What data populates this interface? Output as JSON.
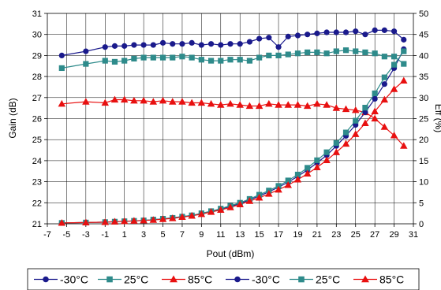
{
  "chart_data": {
    "type": "line",
    "title": "",
    "xlabel": "Pout (dBm)",
    "ylabel": "Gain (dB)",
    "y2label": "Eff (%)",
    "xlim": [
      -7,
      31
    ],
    "ylim": [
      21,
      31
    ],
    "y2lim": [
      0,
      50
    ],
    "xticks": [
      -7,
      -5,
      -3,
      -1,
      1,
      3,
      5,
      7,
      9,
      11,
      13,
      15,
      17,
      19,
      21,
      23,
      25,
      27,
      29,
      31
    ],
    "yticks": [
      21,
      22,
      23,
      24,
      25,
      26,
      27,
      28,
      29,
      30,
      31
    ],
    "y2ticks": [
      0,
      5,
      10,
      15,
      20,
      25,
      30,
      35,
      40,
      45,
      50
    ],
    "grid": true,
    "legend_position": "bottom",
    "series": [
      {
        "name": "-30°C",
        "axis": "gain",
        "color": "#1a1a8c",
        "marker": "circle",
        "x": [
          -5.5,
          -3,
          -1,
          0,
          1,
          2,
          3,
          4,
          5,
          6,
          7,
          8,
          9,
          10,
          11,
          12,
          13,
          14,
          15,
          16,
          17,
          18,
          19,
          20,
          21,
          22,
          23,
          24,
          25,
          26,
          27,
          28,
          29,
          30
        ],
        "y": [
          29.0,
          29.2,
          29.4,
          29.45,
          29.45,
          29.5,
          29.5,
          29.5,
          29.6,
          29.55,
          29.55,
          29.6,
          29.5,
          29.55,
          29.5,
          29.55,
          29.55,
          29.65,
          29.8,
          29.85,
          29.4,
          29.9,
          29.95,
          30.0,
          30.05,
          30.1,
          30.1,
          30.1,
          30.15,
          30.0,
          30.2,
          30.2,
          30.15,
          29.75
        ]
      },
      {
        "name": "25°C",
        "axis": "gain",
        "color": "#2e8b8b",
        "marker": "square",
        "x": [
          -5.5,
          -3,
          -1,
          0,
          1,
          2,
          3,
          4,
          5,
          6,
          7,
          8,
          9,
          10,
          11,
          12,
          13,
          14,
          15,
          16,
          17,
          18,
          19,
          20,
          21,
          22,
          23,
          24,
          25,
          26,
          27,
          28,
          29,
          30
        ],
        "y": [
          28.4,
          28.6,
          28.75,
          28.7,
          28.75,
          28.85,
          28.9,
          28.9,
          28.9,
          28.9,
          28.95,
          28.9,
          28.8,
          28.75,
          28.75,
          28.8,
          28.8,
          28.75,
          28.9,
          29.0,
          29.0,
          29.05,
          29.1,
          29.15,
          29.15,
          29.1,
          29.2,
          29.25,
          29.2,
          29.15,
          29.1,
          28.95,
          28.95,
          28.6
        ]
      },
      {
        "name": "85°C",
        "axis": "gain",
        "color": "#e81010",
        "marker": "triangle",
        "x": [
          -5.5,
          -3,
          -1,
          0,
          1,
          2,
          3,
          4,
          5,
          6,
          7,
          8,
          9,
          10,
          11,
          12,
          13,
          14,
          15,
          16,
          17,
          18,
          19,
          20,
          21,
          22,
          23,
          24,
          25,
          26,
          27,
          28,
          29,
          30
        ],
        "y": [
          26.7,
          26.8,
          26.75,
          26.9,
          26.9,
          26.85,
          26.85,
          26.8,
          26.85,
          26.8,
          26.8,
          26.75,
          26.75,
          26.7,
          26.65,
          26.7,
          26.65,
          26.6,
          26.6,
          26.7,
          26.65,
          26.65,
          26.65,
          26.6,
          26.7,
          26.65,
          26.5,
          26.45,
          26.4,
          26.3,
          26.0,
          25.6,
          25.2,
          24.7
        ]
      },
      {
        "name": "-30°C",
        "axis": "eff",
        "color": "#1a1a8c",
        "marker": "circle",
        "x": [
          -5.5,
          -3,
          -1,
          0,
          1,
          2,
          3,
          4,
          5,
          6,
          7,
          8,
          9,
          10,
          11,
          12,
          13,
          14,
          15,
          16,
          17,
          18,
          19,
          20,
          21,
          22,
          23,
          24,
          25,
          26,
          27,
          28,
          29,
          30
        ],
        "y": [
          0.2,
          0.3,
          0.4,
          0.5,
          0.6,
          0.7,
          0.8,
          1.0,
          1.2,
          1.4,
          1.7,
          2.0,
          2.4,
          2.9,
          3.5,
          4.1,
          4.8,
          5.7,
          6.6,
          7.6,
          8.7,
          9.9,
          11.3,
          12.8,
          14.5,
          16.3,
          18.5,
          20.9,
          23.5,
          26.5,
          29.7,
          33.2,
          37.0,
          41.5
        ]
      },
      {
        "name": "25°C",
        "axis": "eff",
        "color": "#2e8b8b",
        "marker": "square",
        "x": [
          -5.5,
          -3,
          -1,
          0,
          1,
          2,
          3,
          4,
          5,
          6,
          7,
          8,
          9,
          10,
          11,
          12,
          13,
          14,
          15,
          16,
          17,
          18,
          19,
          20,
          21,
          22,
          23,
          24,
          25,
          26,
          27,
          28,
          29,
          30
        ],
        "y": [
          0.2,
          0.3,
          0.4,
          0.5,
          0.6,
          0.7,
          0.8,
          1.0,
          1.2,
          1.4,
          1.7,
          2.0,
          2.5,
          3.0,
          3.6,
          4.3,
          5.0,
          5.9,
          6.9,
          7.9,
          9.0,
          10.3,
          11.7,
          13.3,
          15.1,
          17.0,
          19.2,
          21.7,
          24.5,
          27.6,
          31.0,
          34.8,
          37.8,
          41.0
        ]
      },
      {
        "name": "85°C",
        "axis": "eff",
        "color": "#e81010",
        "marker": "triangle",
        "x": [
          -5.5,
          -3,
          -1,
          0,
          1,
          2,
          3,
          4,
          5,
          6,
          7,
          8,
          9,
          10,
          11,
          12,
          13,
          14,
          15,
          16,
          17,
          18,
          19,
          20,
          21,
          22,
          23,
          24,
          25,
          26,
          27,
          28,
          29,
          30
        ],
        "y": [
          0.2,
          0.3,
          0.4,
          0.5,
          0.6,
          0.7,
          0.8,
          0.9,
          1.1,
          1.3,
          1.6,
          1.9,
          2.3,
          2.8,
          3.3,
          3.9,
          4.6,
          5.4,
          6.2,
          7.1,
          8.1,
          9.2,
          10.5,
          11.9,
          13.4,
          15.1,
          17.0,
          19.0,
          21.3,
          23.9,
          26.7,
          29.5,
          32.0,
          34.0
        ]
      }
    ]
  }
}
